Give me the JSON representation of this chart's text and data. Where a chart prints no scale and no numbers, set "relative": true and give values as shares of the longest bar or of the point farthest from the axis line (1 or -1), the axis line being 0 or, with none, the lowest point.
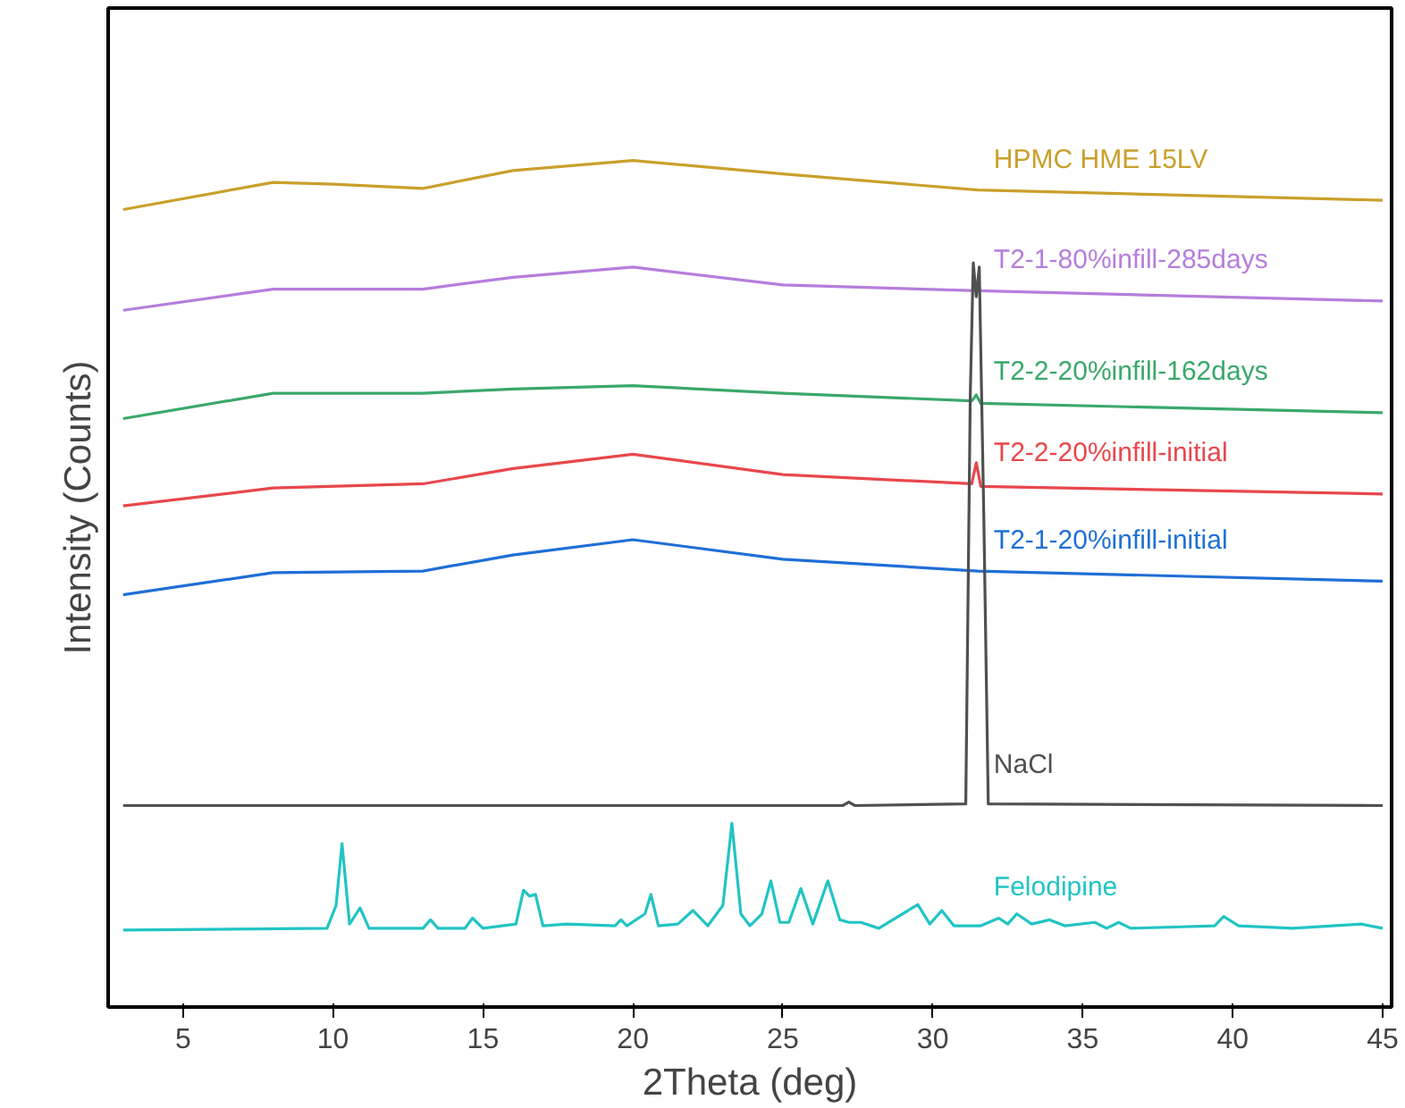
{
  "chart_data": {
    "type": "line",
    "relative": true,
    "xlabel": "2Theta (deg)",
    "ylabel": "Intensity (Counts)",
    "xlim": [
      2.5,
      45.3
    ],
    "xticks": [
      5,
      10,
      15,
      20,
      25,
      30,
      35,
      40,
      45
    ],
    "grid": false,
    "series": [
      {
        "name": "HPMC HME 15LV",
        "color": "#c9a02b",
        "x": [
          3,
          8,
          10,
          13,
          16,
          20,
          25,
          31.5,
          45
        ],
        "values": [
          0.942,
          0.974,
          0.972,
          0.967,
          0.988,
          1.0,
          0.984,
          0.965,
          0.953
        ]
      },
      {
        "name": "T2-1-80%infill-285days",
        "color": "#b57edc",
        "x": [
          3,
          8,
          13,
          16,
          20,
          25,
          31.5,
          45
        ],
        "values": [
          0.823,
          0.848,
          0.848,
          0.862,
          0.874,
          0.853,
          0.846,
          0.834
        ]
      },
      {
        "name": "T2-2-20%infill-162days",
        "color": "#3aa86b",
        "x": [
          3,
          8,
          13,
          16,
          20,
          25,
          31.3,
          31.45,
          31.6,
          45
        ],
        "values": [
          0.695,
          0.725,
          0.725,
          0.73,
          0.734,
          0.725,
          0.716,
          0.723,
          0.713,
          0.702
        ]
      },
      {
        "name": "T2-2-20%infill-initial",
        "color": "#e8474c",
        "x": [
          3,
          8,
          13,
          16,
          20,
          25,
          31.3,
          31.45,
          31.6,
          45
        ],
        "values": [
          0.592,
          0.613,
          0.618,
          0.636,
          0.653,
          0.629,
          0.618,
          0.643,
          0.615,
          0.606
        ]
      },
      {
        "name": "T2-1-20%infill-initial",
        "color": "#1f6fd6",
        "x": [
          3,
          8,
          13,
          16,
          20,
          25,
          31.5,
          45
        ],
        "values": [
          0.487,
          0.513,
          0.515,
          0.534,
          0.552,
          0.529,
          0.515,
          0.503
        ]
      },
      {
        "name": "NaCl",
        "color": "#505050",
        "x": [
          3,
          27.0,
          27.2,
          27.4,
          31.1,
          31.25,
          31.35,
          31.45,
          31.55,
          31.7,
          31.85,
          45
        ],
        "values": [
          0.238,
          0.238,
          0.242,
          0.238,
          0.24,
          0.723,
          0.879,
          0.839,
          0.874,
          0.583,
          0.24,
          0.238
        ]
      },
      {
        "name": "Felodipine",
        "color": "#22c4c4",
        "x": [
          3,
          9.8,
          10.1,
          10.3,
          10.55,
          10.9,
          11.2,
          13.0,
          13.25,
          13.5,
          14.4,
          14.65,
          15.0,
          16.1,
          16.35,
          16.55,
          16.75,
          17.0,
          17.8,
          19.4,
          19.6,
          19.8,
          20.4,
          20.6,
          20.85,
          21.5,
          22.0,
          22.5,
          23.0,
          23.3,
          23.6,
          23.9,
          24.3,
          24.6,
          24.9,
          25.2,
          25.6,
          26.0,
          26.5,
          26.9,
          27.2,
          27.6,
          28.2,
          29.5,
          29.9,
          30.3,
          30.7,
          31.6,
          32.2,
          32.5,
          32.8,
          33.3,
          33.9,
          34.4,
          35.4,
          35.8,
          36.2,
          36.6,
          39.4,
          39.7,
          40.2,
          42,
          44.3,
          45
        ],
        "values": [
          0.091,
          0.093,
          0.12,
          0.193,
          0.098,
          0.117,
          0.093,
          0.093,
          0.103,
          0.093,
          0.093,
          0.105,
          0.093,
          0.098,
          0.138,
          0.131,
          0.133,
          0.096,
          0.098,
          0.096,
          0.103,
          0.096,
          0.11,
          0.133,
          0.096,
          0.098,
          0.114,
          0.096,
          0.12,
          0.217,
          0.11,
          0.096,
          0.11,
          0.149,
          0.1,
          0.1,
          0.14,
          0.098,
          0.149,
          0.103,
          0.1,
          0.1,
          0.093,
          0.121,
          0.098,
          0.114,
          0.096,
          0.096,
          0.105,
          0.098,
          0.11,
          0.098,
          0.103,
          0.096,
          0.1,
          0.093,
          0.1,
          0.093,
          0.096,
          0.107,
          0.096,
          0.093,
          0.098,
          0.093
        ]
      }
    ]
  }
}
